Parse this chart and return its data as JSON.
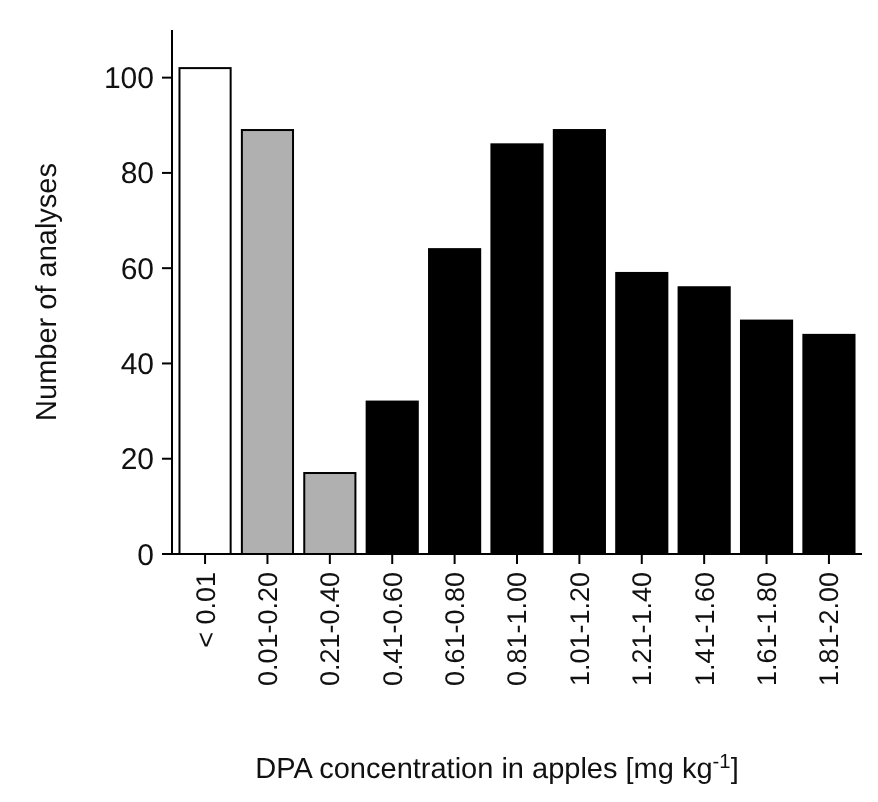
{
  "chart_data": {
    "type": "bar",
    "xlabel": "DPA concentration in apples [mg kg$^{-1}$]",
    "ylabel": "Number of analyses",
    "categories": [
      "< 0.01",
      "0.01-0.20",
      "0.21-0.40",
      "0.41-0.60",
      "0.61-0.80",
      "0.81-1.00",
      "1.01-1.20",
      "1.21-1.40",
      "1.41-1.60",
      "1.61-1.80",
      "1.81-2.00"
    ],
    "values": [
      102,
      89,
      17,
      32,
      64,
      86,
      89,
      59,
      56,
      49,
      46
    ],
    "colors": [
      "#ffffff",
      "#b0b0b0",
      "#b0b0b0",
      "#000000",
      "#000000",
      "#000000",
      "#000000",
      "#000000",
      "#000000",
      "#000000",
      "#000000"
    ],
    "ylim": [
      0,
      110
    ],
    "yticks": [
      0,
      20,
      40,
      60,
      80,
      100
    ],
    "grid": false
  }
}
